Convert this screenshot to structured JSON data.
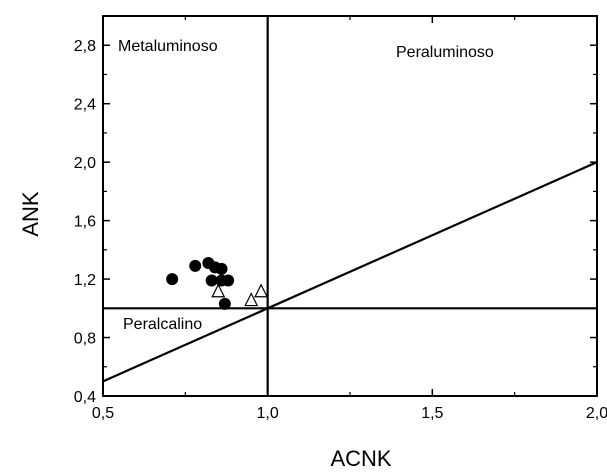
{
  "chart_data": {
    "type": "scatter",
    "title": "",
    "xlabel": "ACNK",
    "ylabel": "ANK",
    "xlim": [
      0.5,
      2.0
    ],
    "ylim": [
      0.4,
      3.0
    ],
    "x_ticks": [
      0.5,
      1.0,
      1.5,
      2.0
    ],
    "x_tick_labels": [
      "0,5",
      "1,0",
      "1,5",
      "2,0"
    ],
    "y_ticks": [
      0.4,
      0.8,
      1.2,
      1.6,
      2.0,
      2.4,
      2.8
    ],
    "y_tick_labels": [
      "0,4",
      "0,8",
      "1,2",
      "1,6",
      "2,0",
      "2,4",
      "2,8"
    ],
    "grid": false,
    "legend": "none",
    "region_labels": {
      "metaluminoso": "Metaluminoso",
      "peraluminoso": "Peraluminoso",
      "peralcalino": "Peralcalino"
    },
    "reference_lines": [
      {
        "x": [
          1.0,
          1.0
        ],
        "y": [
          0.4,
          3.0
        ]
      },
      {
        "x": [
          0.5,
          2.0
        ],
        "y": [
          1.0,
          1.0
        ]
      },
      {
        "x": [
          0.5,
          2.0
        ],
        "y": [
          0.5,
          2.0
        ]
      }
    ],
    "series": [
      {
        "marker": "filled-circle",
        "x": [
          0.71,
          0.78,
          0.82,
          0.84,
          0.86,
          0.83,
          0.86,
          0.88,
          0.87
        ],
        "y": [
          1.2,
          1.29,
          1.31,
          1.28,
          1.27,
          1.19,
          1.19,
          1.19,
          1.03
        ]
      },
      {
        "marker": "open-triangle",
        "x": [
          0.85,
          0.95,
          0.98
        ],
        "y": [
          1.12,
          1.06,
          1.12
        ]
      }
    ]
  }
}
